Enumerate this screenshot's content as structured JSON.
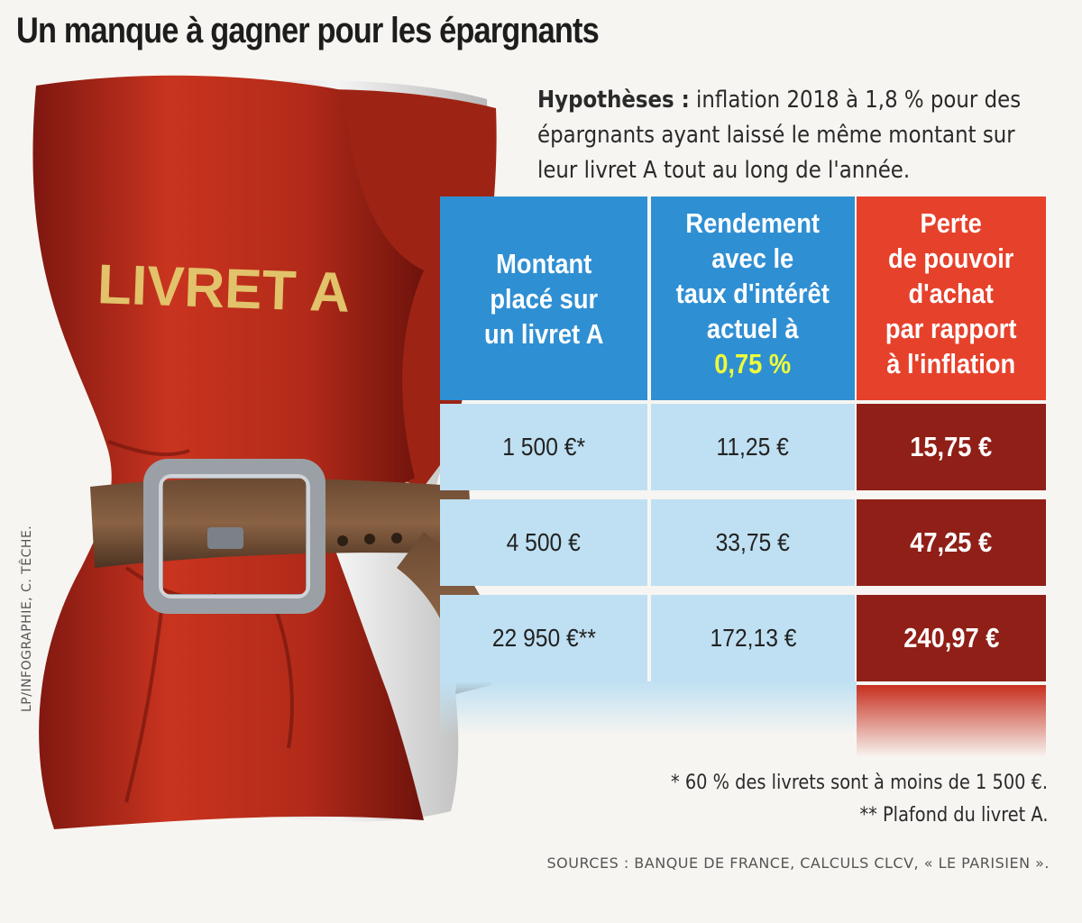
{
  "title": "Un manque à gagner pour les épargnants",
  "hypotheses": {
    "label": "Hypothèses :",
    "text": "inflation 2018 à 1,8 % pour des épargnants ayant laissé le même montant sur leur livret A tout au long de l'année."
  },
  "illustration": {
    "book_label": "LIVRET A"
  },
  "credit": "LP/INFOGRAPHIE, C. TÊCHE.",
  "chart_data": {
    "type": "table",
    "columns": [
      "Montant placé sur un livret A",
      "Rendement avec le taux d'intérêt actuel à 0,75 %",
      "Perte de pouvoir d'achat par rapport à l'inflation"
    ],
    "header_lines": {
      "montant": [
        "Montant",
        "placé sur",
        "un livret A"
      ],
      "rendement": [
        "Rendement",
        "avec le",
        "taux d'intérêt",
        "actuel à"
      ],
      "rendement_highlight": "0,75 %",
      "perte": [
        "Perte",
        "de pouvoir",
        "d'achat",
        "par rapport",
        "à l'inflation"
      ]
    },
    "rows": [
      {
        "montant": "1 500 €*",
        "rendement": "11,25 €",
        "perte": "15,75 €"
      },
      {
        "montant": "4 500 €",
        "rendement": "33,75 €",
        "perte": "47,25 €"
      },
      {
        "montant": "22 950 €**",
        "rendement": "172,13 €",
        "perte": "240,97 €"
      }
    ],
    "colors": {
      "header_blue": "#2f8fd3",
      "header_red": "#e6412b",
      "cell_blue": "#bfe0f2",
      "cell_red": "#8f1f17",
      "highlight": "#eefc3a"
    }
  },
  "notes": [
    "* 60 % des livrets sont à moins de 1 500 €.",
    "** Plafond du livret A."
  ],
  "sources": "SOURCES : BANQUE DE FRANCE, CALCULS CLCV, « LE PARISIEN »."
}
